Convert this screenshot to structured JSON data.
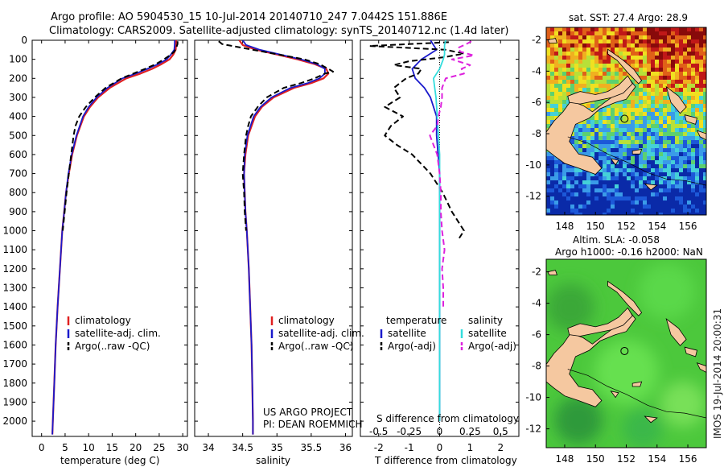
{
  "header": {
    "title_line1": "Argo profile: AO 5904530_15 10-Jul-2014 20140710_247 7.0442S 151.886E",
    "title_line2": "Climatology: CARS2009. Satellite-adjusted climatology: synTS_20140712.nc (1.4d later)"
  },
  "map_sst": {
    "title": "sat. SST: 27.4 Argo: 28.9"
  },
  "map_sla": {
    "title_line1": "Altim. SLA: -0.058",
    "title_line2": "Argo h1000: -0.16 h2000: NaN"
  },
  "credit": {
    "line1": "US ARGO PROJECT",
    "line2": "PI: DEAN ROEMMICH"
  },
  "footer": {
    "timestamp": "IMOS 19-Jul-2014 20:00:31"
  },
  "colors": {
    "climatology": "#e02020",
    "satellite": "#1a1acc",
    "argo": "#000000",
    "sal_satellite": "#33dddd",
    "sal_argo": "#dd22dd",
    "land": "#f5c8a0",
    "sla_green": "#4cc83c"
  },
  "chart_data": [
    {
      "type": "line",
      "name": "temperature",
      "xlabel": "temperature (deg C)",
      "ylabel": "depth",
      "xlim": [
        -2,
        31
      ],
      "ylim": [
        0,
        2080
      ],
      "xticks": [
        "0",
        "5",
        "10",
        "15",
        "20",
        "25",
        "30"
      ],
      "yticks": [
        "0",
        "100",
        "200",
        "300",
        "400",
        "500",
        "600",
        "700",
        "800",
        "900",
        "1000",
        "1100",
        "1200",
        "1300",
        "1400",
        "1500",
        "1600",
        "1700",
        "1800",
        "1900",
        "2000"
      ],
      "legend": [
        "climatology",
        "satellite-adj. clim.",
        "Argo(..raw -QC)"
      ],
      "series": [
        {
          "name": "climatology",
          "depth": [
            0,
            20,
            50,
            75,
            100,
            125,
            150,
            175,
            200,
            250,
            300,
            350,
            400,
            500,
            600,
            700,
            800,
            900,
            1000,
            1200,
            1400,
            1600,
            1800,
            2000,
            2070
          ],
          "values": [
            28.6,
            28.6,
            28.5,
            28.0,
            27.2,
            25.5,
            23.5,
            21.0,
            18.0,
            14.5,
            12.0,
            10.3,
            9.0,
            7.5,
            6.5,
            5.8,
            5.2,
            4.8,
            4.4,
            3.9,
            3.4,
            3.0,
            2.7,
            2.4,
            2.3
          ]
        },
        {
          "name": "satellite-adj. clim.",
          "depth": [
            0,
            20,
            50,
            75,
            100,
            125,
            150,
            175,
            200,
            250,
            300,
            350,
            400,
            500,
            600,
            700,
            800,
            900,
            1000,
            1200,
            1400,
            1600,
            1800,
            2000,
            2070
          ],
          "values": [
            28.3,
            28.3,
            28.2,
            27.5,
            26.6,
            24.8,
            22.5,
            20.0,
            17.2,
            14.0,
            11.7,
            10.0,
            8.8,
            7.4,
            6.4,
            5.7,
            5.2,
            4.8,
            4.4,
            3.9,
            3.4,
            3.0,
            2.7,
            2.4,
            2.3
          ]
        },
        {
          "name": "Argo(..raw -QC)",
          "depth": [
            5,
            20,
            40,
            60,
            80,
            100,
            125,
            150,
            175,
            200,
            250,
            300,
            350,
            400,
            450,
            500,
            600,
            700,
            800,
            900,
            1000
          ],
          "values": [
            28.9,
            28.9,
            28.6,
            28.2,
            27.2,
            26.0,
            24.3,
            22.0,
            19.5,
            17.0,
            13.6,
            11.3,
            9.4,
            8.0,
            7.2,
            6.8,
            6.3,
            5.8,
            5.3,
            4.9,
            4.5
          ]
        }
      ]
    },
    {
      "type": "line",
      "name": "salinity",
      "xlabel": "salinity",
      "xlim": [
        33.8,
        36.1
      ],
      "ylim": [
        0,
        2080
      ],
      "xticks": [
        "34",
        "34.5",
        "35",
        "35.5",
        "36"
      ],
      "legend": [
        "climatology",
        "satellite-adj. clim.",
        "Argo(..raw -QC)"
      ],
      "series": [
        {
          "name": "climatology",
          "depth": [
            0,
            25,
            50,
            75,
            100,
            125,
            150,
            175,
            200,
            225,
            250,
            300,
            350,
            400,
            500,
            600,
            700,
            800,
            900,
            1000,
            1200,
            1400,
            1600,
            1800,
            2000,
            2070
          ],
          "values": [
            34.45,
            34.5,
            34.7,
            35.0,
            35.3,
            35.55,
            35.72,
            35.75,
            35.68,
            35.5,
            35.25,
            34.95,
            34.78,
            34.68,
            34.58,
            34.54,
            34.52,
            34.53,
            34.54,
            34.56,
            34.59,
            34.61,
            34.63,
            34.64,
            34.65,
            34.65
          ]
        },
        {
          "name": "satellite-adj. clim.",
          "depth": [
            0,
            25,
            50,
            75,
            100,
            125,
            150,
            175,
            200,
            225,
            250,
            300,
            350,
            400,
            500,
            600,
            700,
            800,
            900,
            1000,
            1200,
            1400,
            1600,
            1800,
            2000,
            2070
          ],
          "values": [
            34.5,
            34.55,
            34.75,
            35.05,
            35.35,
            35.58,
            35.7,
            35.7,
            35.62,
            35.45,
            35.2,
            34.92,
            34.76,
            34.66,
            34.57,
            34.53,
            34.52,
            34.53,
            34.54,
            34.56,
            34.59,
            34.61,
            34.63,
            34.64,
            34.65,
            34.65
          ]
        },
        {
          "name": "Argo(..raw -QC)",
          "depth": [
            5,
            20,
            40,
            60,
            80,
            100,
            125,
            150,
            165,
            175,
            200,
            225,
            250,
            300,
            350,
            400,
            450,
            500,
            600,
            700,
            800,
            900,
            1000
          ],
          "values": [
            34.15,
            34.2,
            34.5,
            34.8,
            35.1,
            35.4,
            35.62,
            35.75,
            35.82,
            35.7,
            35.55,
            35.35,
            35.1,
            34.85,
            34.72,
            34.62,
            34.58,
            34.55,
            34.52,
            34.5,
            34.52,
            34.53,
            34.55
          ]
        }
      ]
    },
    {
      "type": "line",
      "name": "difference",
      "xlabel": "T difference from climatology",
      "xlabel_top": "S difference from climatology",
      "xlim": [
        -2.6,
        2.6
      ],
      "ylim": [
        0,
        2080
      ],
      "xticks": [
        "-2",
        "-1",
        "0",
        "1",
        "2"
      ],
      "xticks_s": [
        "-0.5",
        "-0.25",
        "0",
        "0.25",
        "0.5"
      ],
      "legend_headers": [
        "temperature",
        "salinity"
      ],
      "legend": [
        "satellite",
        "Argo(-adj)",
        "satellite",
        "Argo(-adj)"
      ],
      "series": [
        {
          "name": "temperature satellite",
          "depth": [
            0,
            50,
            100,
            150,
            200,
            250,
            300,
            350,
            400,
            500,
            600,
            700,
            800,
            900,
            1000,
            1200,
            1400,
            1600,
            1800,
            2000
          ],
          "values": [
            -0.3,
            -0.1,
            -0.6,
            -0.9,
            -0.8,
            -0.5,
            -0.3,
            -0.2,
            -0.1,
            -0.1,
            -0.05,
            0,
            0,
            0,
            0,
            0,
            0,
            0,
            0,
            0
          ]
        },
        {
          "name": "temperature Argo(-adj)",
          "depth": [
            10,
            30,
            50,
            70,
            90,
            110,
            130,
            150,
            175,
            200,
            250,
            300,
            350,
            400,
            450,
            500,
            550,
            600,
            650,
            700,
            800,
            900,
            1000,
            1050
          ],
          "values": [
            0.3,
            -2.3,
            0.2,
            0.8,
            0.1,
            -1.0,
            -1.5,
            -0.6,
            -0.7,
            -1.1,
            -1.5,
            -1.3,
            -1.8,
            -1.2,
            -1.6,
            -1.8,
            -1.4,
            -0.9,
            -0.6,
            -0.3,
            0.1,
            0.4,
            0.8,
            0.6
          ]
        },
        {
          "name": "salinity satellite",
          "depth": [
            0,
            25,
            50,
            75,
            100,
            150,
            200,
            250,
            300,
            400,
            500,
            600,
            800,
            1000,
            1200,
            1400,
            1600,
            1800,
            2000
          ],
          "values": [
            0.05,
            0.04,
            0.04,
            0.04,
            0.03,
            0.0,
            -0.05,
            -0.04,
            -0.03,
            -0.02,
            -0.01,
            0,
            0,
            0,
            0,
            0,
            0,
            0,
            0
          ]
        },
        {
          "name": "salinity Argo(-adj)",
          "depth": [
            5,
            20,
            40,
            60,
            80,
            100,
            130,
            150,
            175,
            200,
            250,
            300,
            350,
            400,
            450,
            500,
            550,
            600,
            700,
            800,
            900,
            1000,
            1100,
            1200,
            1300,
            1400
          ],
          "values": [
            0.26,
            0.22,
            0.15,
            0.17,
            0.28,
            0.1,
            0.25,
            0.18,
            0.2,
            0.05,
            0.02,
            0.02,
            0.01,
            -0.01,
            -0.02,
            -0.08,
            -0.05,
            -0.02,
            0.0,
            0.01,
            0.01,
            0.02,
            0.04,
            0.02,
            0.03,
            0.03
          ]
        }
      ]
    },
    {
      "type": "heatmap",
      "name": "sst_map",
      "xlim": [
        146.8,
        157.2
      ],
      "ylim": [
        -13.2,
        -1.2
      ],
      "xticks": [
        "148",
        "150",
        "152",
        "154",
        "156"
      ],
      "yticks": [
        "-2",
        "-4",
        "-6",
        "-8",
        "-10",
        "-12"
      ],
      "argo_position": [
        151.886,
        -7.0442
      ]
    },
    {
      "type": "heatmap",
      "name": "sla_map",
      "xlim": [
        146.8,
        157.2
      ],
      "ylim": [
        -13.2,
        -1.2
      ],
      "xticks": [
        "148",
        "150",
        "152",
        "154",
        "156"
      ],
      "yticks": [
        "-2",
        "-4",
        "-6",
        "-8",
        "-10",
        "-12"
      ],
      "argo_position": [
        151.886,
        -7.0442
      ]
    }
  ]
}
